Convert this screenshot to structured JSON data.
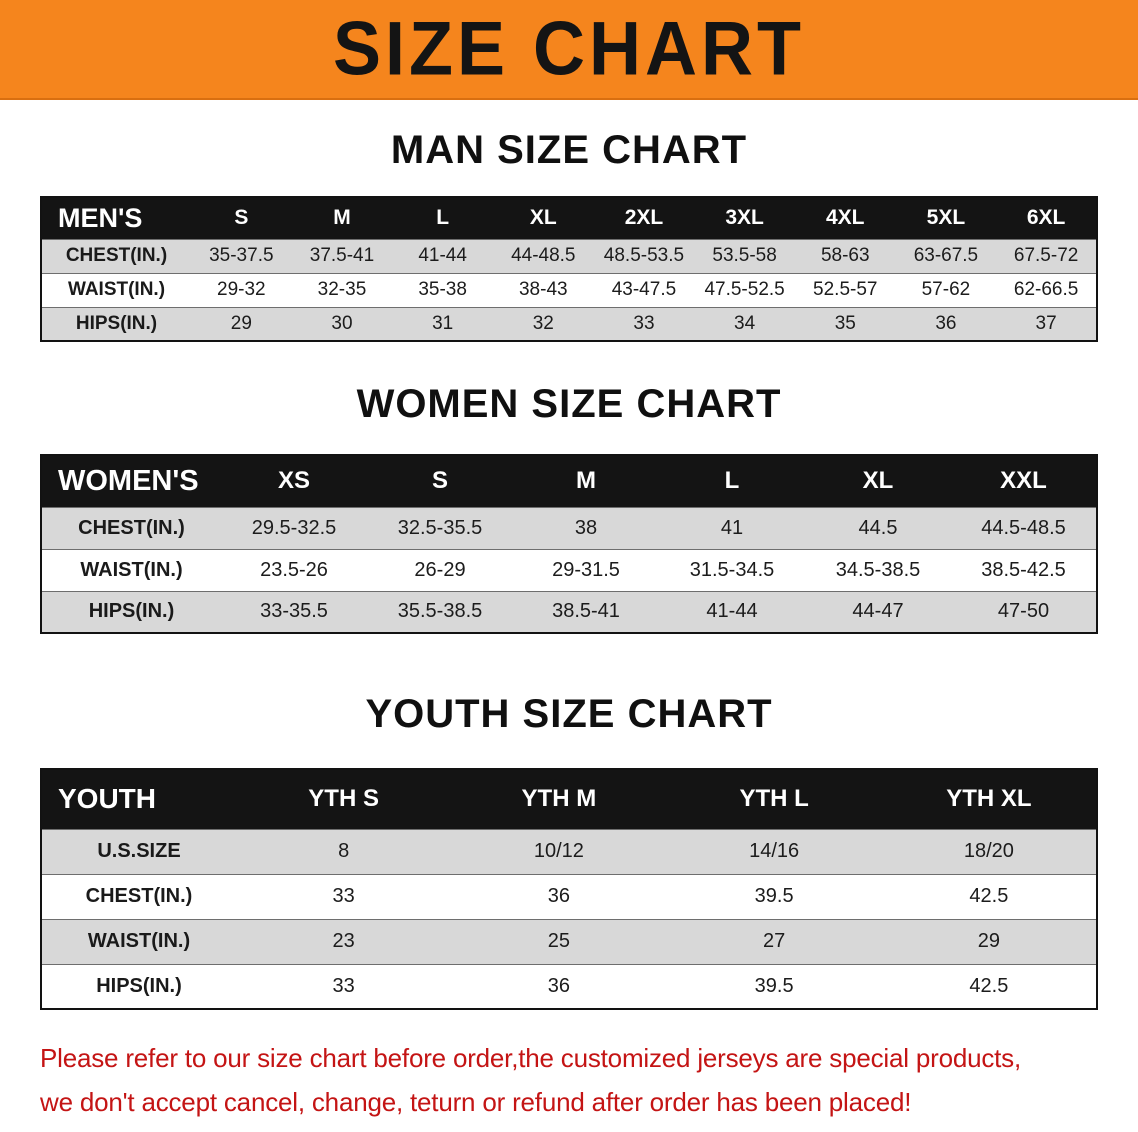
{
  "banner": {
    "title": "SIZE CHART"
  },
  "colors": {
    "banner_bg": "#f5851d",
    "header_bg": "#141414",
    "row_alt": "#d8d8d8",
    "footer_text": "#c41414"
  },
  "sections": [
    {
      "heading": "MAN SIZE CHART",
      "corner_label": "MEN'S",
      "columns": [
        "S",
        "M",
        "L",
        "XL",
        "2XL",
        "3XL",
        "4XL",
        "5XL",
        "6XL"
      ],
      "rows": [
        {
          "label": "CHEST(IN.)",
          "values": [
            "35-37.5",
            "37.5-41",
            "41-44",
            "44-48.5",
            "48.5-53.5",
            "53.5-58",
            "58-63",
            "63-67.5",
            "67.5-72"
          ]
        },
        {
          "label": "WAIST(IN.)",
          "values": [
            "29-32",
            "32-35",
            "35-38",
            "38-43",
            "43-47.5",
            "47.5-52.5",
            "52.5-57",
            "57-62",
            "62-66.5"
          ]
        },
        {
          "label": "HIPS(IN.)",
          "values": [
            "29",
            "30",
            "31",
            "32",
            "33",
            "34",
            "35",
            "36",
            "37"
          ]
        }
      ]
    },
    {
      "heading": "WOMEN SIZE CHART",
      "corner_label": "WOMEN'S",
      "columns": [
        "XS",
        "S",
        "M",
        "L",
        "XL",
        "XXL"
      ],
      "rows": [
        {
          "label": "CHEST(IN.)",
          "values": [
            "29.5-32.5",
            "32.5-35.5",
            "38",
            "41",
            "44.5",
            "44.5-48.5"
          ]
        },
        {
          "label": "WAIST(IN.)",
          "values": [
            "23.5-26",
            "26-29",
            "29-31.5",
            "31.5-34.5",
            "34.5-38.5",
            "38.5-42.5"
          ]
        },
        {
          "label": "HIPS(IN.)",
          "values": [
            "33-35.5",
            "35.5-38.5",
            "38.5-41",
            "41-44",
            "44-47",
            "47-50"
          ]
        }
      ]
    },
    {
      "heading": "YOUTH SIZE CHART",
      "corner_label": "YOUTH",
      "columns": [
        "YTH S",
        "YTH M",
        "YTH L",
        "YTH XL"
      ],
      "rows": [
        {
          "label": "U.S.SIZE",
          "values": [
            "8",
            "10/12",
            "14/16",
            "18/20"
          ]
        },
        {
          "label": "CHEST(IN.)",
          "values": [
            "33",
            "36",
            "39.5",
            "42.5"
          ]
        },
        {
          "label": "WAIST(IN.)",
          "values": [
            "23",
            "25",
            "27",
            "29"
          ]
        },
        {
          "label": "HIPS(IN.)",
          "values": [
            "33",
            "36",
            "39.5",
            "42.5"
          ]
        }
      ]
    }
  ],
  "footer": {
    "line1": "Please refer to our size chart before order,the customized jerseys are special products,",
    "line2": "we don't accept cancel, change, teturn or refund after order has been placed!"
  }
}
